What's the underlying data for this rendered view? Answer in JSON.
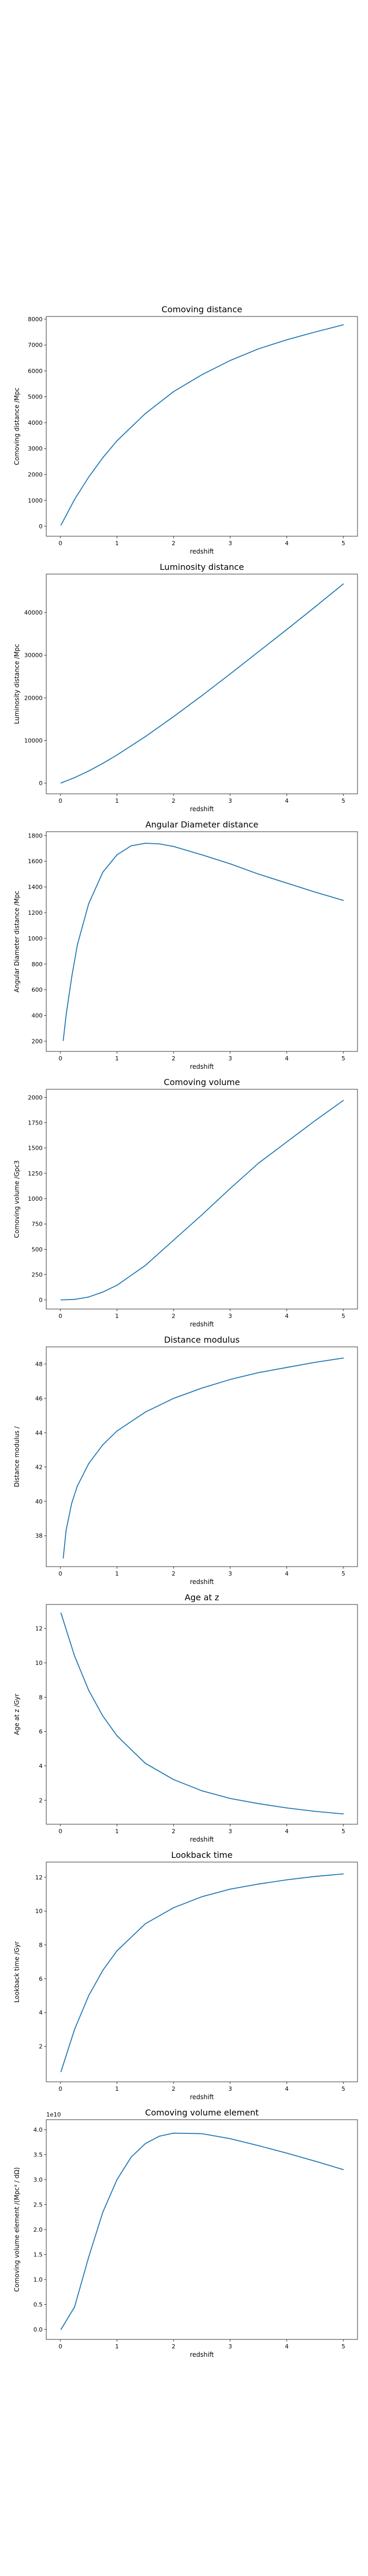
{
  "chart_data": [
    {
      "type": "line",
      "title": "Comoving distance",
      "xlabel": "redshift",
      "ylabel": "Comoving distance /Mpc",
      "xlim": [
        -0.25,
        5.25
      ],
      "ylim": [
        -385,
        8100
      ],
      "xticks": [
        0,
        1,
        2,
        3,
        4,
        5
      ],
      "yticks": [
        0,
        1000,
        2000,
        3000,
        4000,
        5000,
        6000,
        7000,
        8000
      ],
      "ytick_labels": [
        "0",
        "1000",
        "2000",
        "3000",
        "4000",
        "5000",
        "6000",
        "7000",
        "8000"
      ],
      "y_offset_label": "",
      "series": [
        {
          "name": "Comoving distance",
          "color": "#1f77b4",
          "x": [
            0.01,
            0.25,
            0.5,
            0.75,
            1.0,
            1.5,
            2.0,
            2.5,
            3.0,
            3.5,
            4.0,
            4.5,
            5.0
          ],
          "y": [
            43,
            1035,
            1900,
            2650,
            3300,
            4350,
            5200,
            5850,
            6400,
            6850,
            7200,
            7500,
            7780
          ]
        }
      ]
    },
    {
      "type": "line",
      "title": "Luminosity distance",
      "xlabel": "redshift",
      "ylabel": "Luminosity distance /Mpc",
      "xlim": [
        -0.25,
        5.25
      ],
      "ylim": [
        -2500,
        49000
      ],
      "xticks": [
        0,
        1,
        2,
        3,
        4,
        5
      ],
      "yticks": [
        0,
        10000,
        20000,
        30000,
        40000
      ],
      "ytick_labels": [
        "0",
        "10000",
        "20000",
        "30000",
        "40000"
      ],
      "y_offset_label": "",
      "series": [
        {
          "name": "Luminosity distance",
          "color": "#1f77b4",
          "x": [
            0.01,
            0.25,
            0.5,
            0.75,
            1.0,
            1.5,
            2.0,
            2.5,
            3.0,
            3.5,
            4.0,
            4.5,
            5.0
          ],
          "y": [
            43,
            1290,
            2850,
            4640,
            6600,
            10900,
            15600,
            20500,
            25600,
            30800,
            36000,
            41300,
            46700
          ]
        }
      ]
    },
    {
      "type": "line",
      "title": "Angular Diameter distance",
      "xlabel": "redshift",
      "ylabel": "Angular Diameter distance /Mpc",
      "xlim": [
        -0.25,
        5.25
      ],
      "ylim": [
        120,
        1830
      ],
      "xticks": [
        0,
        1,
        2,
        3,
        4,
        5
      ],
      "yticks": [
        200,
        400,
        600,
        800,
        1000,
        1200,
        1400,
        1600,
        1800
      ],
      "ytick_labels": [
        "200",
        "400",
        "600",
        "800",
        "1000",
        "1200",
        "1400",
        "1600",
        "1800"
      ],
      "y_offset_label": "",
      "series": [
        {
          "name": "Angular Diameter distance",
          "color": "#1f77b4",
          "x": [
            0.05,
            0.1,
            0.2,
            0.3,
            0.5,
            0.75,
            1.0,
            1.25,
            1.5,
            1.75,
            2.0,
            2.5,
            3.0,
            3.5,
            4.0,
            4.5,
            5.0
          ],
          "y": [
            205,
            400,
            700,
            950,
            1270,
            1515,
            1650,
            1720,
            1740,
            1735,
            1715,
            1650,
            1580,
            1500,
            1430,
            1360,
            1295
          ]
        }
      ]
    },
    {
      "type": "line",
      "title": "Comoving volume",
      "xlabel": "redshift",
      "ylabel": "Comoving volume /Gpc3",
      "xlim": [
        -0.25,
        5.25
      ],
      "ylim": [
        -90,
        2080
      ],
      "xticks": [
        0,
        1,
        2,
        3,
        4,
        5
      ],
      "yticks": [
        0,
        250,
        500,
        750,
        1000,
        1250,
        1500,
        1750,
        2000
      ],
      "ytick_labels": [
        "0",
        "250",
        "500",
        "750",
        "1000",
        "1250",
        "1500",
        "1750",
        "2000"
      ],
      "y_offset_label": "",
      "series": [
        {
          "name": "Comoving volume",
          "color": "#1f77b4",
          "x": [
            0.01,
            0.25,
            0.5,
            0.75,
            1.0,
            1.5,
            2.0,
            2.5,
            3.0,
            3.5,
            4.0,
            4.5,
            5.0
          ],
          "y": [
            0,
            5,
            29,
            78,
            145,
            340,
            590,
            840,
            1100,
            1350,
            1560,
            1770,
            1970
          ]
        }
      ]
    },
    {
      "type": "line",
      "title": "Distance modulus",
      "xlabel": "redshift",
      "ylabel": "Distance modulus /",
      "xlim": [
        -0.25,
        5.25
      ],
      "ylim": [
        36.2,
        49.0
      ],
      "xticks": [
        0,
        1,
        2,
        3,
        4,
        5
      ],
      "yticks": [
        38,
        40,
        42,
        44,
        46,
        48
      ],
      "ytick_labels": [
        "38",
        "40",
        "42",
        "44",
        "46",
        "48"
      ],
      "y_offset_label": "",
      "series": [
        {
          "name": "Distance modulus",
          "color": "#1f77b4",
          "x": [
            0.05,
            0.1,
            0.2,
            0.3,
            0.5,
            0.75,
            1.0,
            1.5,
            2.0,
            2.5,
            3.0,
            3.5,
            4.0,
            4.5,
            5.0
          ],
          "y": [
            36.7,
            38.3,
            39.9,
            40.9,
            42.2,
            43.3,
            44.1,
            45.2,
            46.0,
            46.6,
            47.1,
            47.5,
            47.8,
            48.1,
            48.35
          ]
        }
      ]
    },
    {
      "type": "line",
      "title": "Age at z",
      "xlabel": "redshift",
      "ylabel": "Age at z /Gyr",
      "xlim": [
        -0.25,
        5.25
      ],
      "ylim": [
        0.6,
        13.4
      ],
      "xticks": [
        0,
        1,
        2,
        3,
        4,
        5
      ],
      "yticks": [
        2,
        4,
        6,
        8,
        10,
        12
      ],
      "ytick_labels": [
        "2",
        "4",
        "6",
        "8",
        "10",
        "12"
      ],
      "y_offset_label": "",
      "series": [
        {
          "name": "Age at z",
          "color": "#1f77b4",
          "x": [
            0.01,
            0.25,
            0.5,
            0.75,
            1.0,
            1.5,
            2.0,
            2.5,
            3.0,
            3.5,
            4.0,
            4.5,
            5.0
          ],
          "y": [
            12.9,
            10.4,
            8.4,
            6.9,
            5.75,
            4.15,
            3.2,
            2.55,
            2.1,
            1.8,
            1.55,
            1.35,
            1.2
          ]
        }
      ]
    },
    {
      "type": "line",
      "title": "Lookback time",
      "xlabel": "redshift",
      "ylabel": "Lookback time /Gyr",
      "xlim": [
        -0.25,
        5.25
      ],
      "ylim": [
        -0.1,
        12.9
      ],
      "xticks": [
        0,
        1,
        2,
        3,
        4,
        5
      ],
      "yticks": [
        2,
        4,
        6,
        8,
        10,
        12
      ],
      "ytick_labels": [
        "2",
        "4",
        "6",
        "8",
        "10",
        "12"
      ],
      "y_offset_label": "",
      "series": [
        {
          "name": "Lookback time",
          "color": "#1f77b4",
          "x": [
            0.01,
            0.25,
            0.5,
            0.75,
            1.0,
            1.5,
            2.0,
            2.5,
            3.0,
            3.5,
            4.0,
            4.5,
            5.0
          ],
          "y": [
            0.5,
            3.0,
            5.0,
            6.5,
            7.65,
            9.25,
            10.2,
            10.85,
            11.3,
            11.6,
            11.85,
            12.05,
            12.2
          ]
        }
      ]
    },
    {
      "type": "line",
      "title": "Comoving volume element",
      "xlabel": "redshift",
      "ylabel": "Comoving volume element /(Mpc³ / dΩ)",
      "xlim": [
        -0.25,
        5.25
      ],
      "ylim": [
        -2000000000.0,
        42000000000.0
      ],
      "xticks": [
        0,
        1,
        2,
        3,
        4,
        5
      ],
      "yticks": [
        0,
        5000000000.0,
        10000000000.0,
        15000000000.0,
        20000000000.0,
        25000000000.0,
        30000000000.0,
        35000000000.0,
        40000000000.0
      ],
      "ytick_labels": [
        "0.0",
        "0.5",
        "1.0",
        "1.5",
        "2.0",
        "2.5",
        "3.0",
        "3.5",
        "4.0"
      ],
      "y_offset_label": "1e10",
      "series": [
        {
          "name": "Comoving volume element",
          "color": "#1f77b4",
          "x": [
            0.01,
            0.25,
            0.5,
            0.75,
            1.0,
            1.25,
            1.5,
            1.75,
            2.0,
            2.5,
            3.0,
            3.5,
            4.0,
            4.5,
            5.0
          ],
          "y": [
            0.0,
            4500000000.0,
            14500000000.0,
            23500000000.0,
            30000000000.0,
            34500000000.0,
            37200000000.0,
            38700000000.0,
            39300000000.0,
            39200000000.0,
            38200000000.0,
            36800000000.0,
            35300000000.0,
            33700000000.0,
            32000000000.0
          ]
        }
      ]
    }
  ]
}
